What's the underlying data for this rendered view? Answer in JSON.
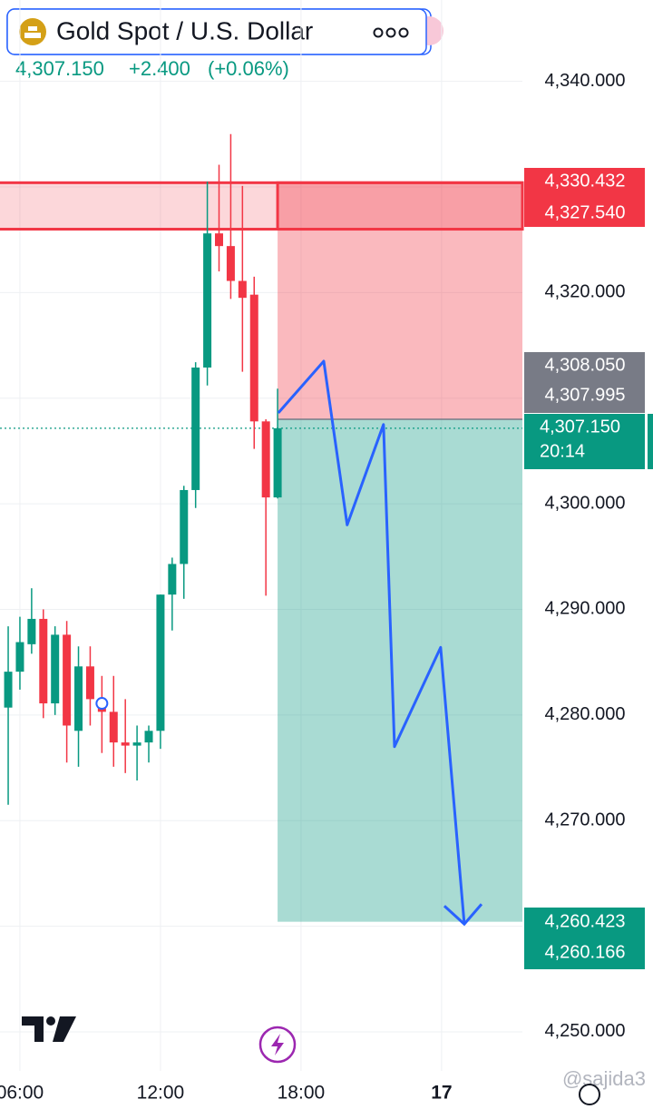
{
  "header": {
    "symbol": "Gold Spot / U.S. Dollar",
    "price": "4,307.150",
    "change": "+2.400",
    "change_pct": "(+0.06%)"
  },
  "watermark": "@sajida3",
  "chart_data": {
    "type": "candlestick",
    "up_color": "#089981",
    "down_color": "#f23645",
    "x": [
      5.5,
      6.0,
      6.5,
      7.0,
      7.5,
      8.0,
      8.5,
      9.0,
      9.5,
      10.0,
      10.5,
      11.0,
      11.5,
      12.0,
      12.5,
      13.0,
      13.5,
      14.0,
      14.5,
      15.0,
      15.5,
      16.0,
      16.5,
      17.0
    ],
    "open": [
      4280.7,
      4284.1,
      4286.7,
      4289.1,
      4281.1,
      4287.6,
      4278.5,
      4284.6,
      4281.5,
      4280.3,
      4277.4,
      4277.1,
      4277.4,
      4278.5,
      4291.4,
      4294.3,
      4301.3,
      4312.9,
      4325.6,
      4324.4,
      4321.1,
      4319.8,
      4307.8,
      4300.6
    ],
    "high": [
      4288.4,
      4289.3,
      4292.0,
      4290.0,
      4288.4,
      4288.9,
      4286.5,
      4286.5,
      4283.7,
      4283.7,
      4281.5,
      4279.0,
      4279.0,
      4291.4,
      4294.9,
      4301.7,
      4313.4,
      4330.5,
      4332.1,
      4335.0,
      4330.1,
      4321.5,
      4308.0,
      4310.9
    ],
    "low": [
      4271.5,
      4282.4,
      4285.8,
      4279.7,
      4280.0,
      4275.5,
      4275.1,
      4279.0,
      4276.4,
      4275.1,
      4274.5,
      4273.8,
      4275.5,
      4276.8,
      4288.0,
      4291.0,
      4299.6,
      4311.2,
      4322.0,
      4319.4,
      4312.5,
      4305.2,
      4291.3,
      4300.5
    ],
    "close": [
      4284.1,
      4286.9,
      4289.1,
      4281.1,
      4287.6,
      4279.0,
      4284.6,
      4281.5,
      4280.3,
      4277.4,
      4277.1,
      4277.4,
      4278.5,
      4291.4,
      4294.3,
      4301.3,
      4312.9,
      4325.6,
      4324.4,
      4321.1,
      4319.5,
      4307.8,
      4300.6,
      4307.15
    ],
    "xlim": [
      5.15,
      27.45
    ],
    "xticks": [
      {
        "value": 6,
        "label": "06:00"
      },
      {
        "value": 12,
        "label": "12:00"
      },
      {
        "value": 18,
        "label": "18:00"
      },
      {
        "value": 24,
        "label": "17"
      }
    ],
    "ylim": [
      4246.3,
      4347.7
    ],
    "yticks": [
      {
        "value": 4340,
        "label": "4,340.000"
      },
      {
        "value": 4320,
        "label": "4,320.000"
      },
      {
        "value": 4300,
        "label": "4,300.000"
      },
      {
        "value": 4290,
        "label": "4,290.000"
      },
      {
        "value": 4280,
        "label": "4,280.000"
      },
      {
        "value": 4270,
        "label": "4,270.000"
      },
      {
        "value": 4250,
        "label": "4,250.000"
      }
    ],
    "grid": [
      4340,
      4330,
      4320,
      4310,
      4300,
      4290,
      4280,
      4270,
      4260,
      4250
    ],
    "zone": {
      "top": 4330.4,
      "bottom": 4326.0,
      "color": "#f23645"
    },
    "position": {
      "x": 17.0,
      "entry": 4308.0,
      "stop": 4330.432,
      "target": 4260.423
    },
    "marker": {
      "x": 9.5,
      "value": 4281.1,
      "color": "#2962ff"
    },
    "projection": {
      "color": "#2962ff",
      "x": [
        17.03,
        18.97,
        19.97,
        21.52,
        21.99,
        23.96,
        24.97
      ],
      "values": [
        4308.6,
        4313.5,
        4298.0,
        4307.5,
        4277.0,
        4286.4,
        4260.2
      ]
    },
    "current": {
      "value": 4307.15,
      "label": "4,307.150",
      "countdown": "20:14",
      "color": "#089981"
    },
    "price_labels": [
      {
        "value": 4330.432,
        "label": "4,330.432",
        "color": "#f23645"
      },
      {
        "value": 4327.54,
        "label": "4,327.540",
        "color": "#f23645"
      },
      {
        "value": 4308.05,
        "label": "4,308.050",
        "color": "#787b86"
      },
      {
        "value": 4307.995,
        "label": "4,307.995",
        "color": "#787b86"
      },
      {
        "value": 4260.423,
        "label": "4,260.423",
        "color": "#089981"
      },
      {
        "value": 4260.166,
        "label": "4,260.166",
        "color": "#089981"
      }
    ]
  }
}
